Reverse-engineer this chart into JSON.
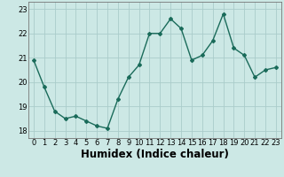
{
  "title": "",
  "xlabel": "Humidex (Indice chaleur)",
  "x": [
    0,
    1,
    2,
    3,
    4,
    5,
    6,
    7,
    8,
    9,
    10,
    11,
    12,
    13,
    14,
    15,
    16,
    17,
    18,
    19,
    20,
    21,
    22,
    23
  ],
  "y": [
    20.9,
    19.8,
    18.8,
    18.5,
    18.6,
    18.4,
    18.2,
    18.1,
    19.3,
    20.2,
    20.7,
    22.0,
    22.0,
    22.6,
    22.2,
    20.9,
    21.1,
    21.7,
    22.8,
    21.4,
    21.1,
    20.2,
    20.5,
    20.6
  ],
  "line_color": "#1a6b5a",
  "marker": "D",
  "marker_size": 2.0,
  "line_width": 1.0,
  "bg_color": "#cce8e5",
  "grid_color": "#aaccca",
  "ylim": [
    17.7,
    23.3
  ],
  "yticks": [
    18,
    19,
    20,
    21,
    22,
    23
  ],
  "xticks": [
    0,
    1,
    2,
    3,
    4,
    5,
    6,
    7,
    8,
    9,
    10,
    11,
    12,
    13,
    14,
    15,
    16,
    17,
    18,
    19,
    20,
    21,
    22,
    23
  ],
  "tick_label_size": 6.0,
  "xlabel_size": 8.5,
  "xlabel_fontweight": "bold"
}
